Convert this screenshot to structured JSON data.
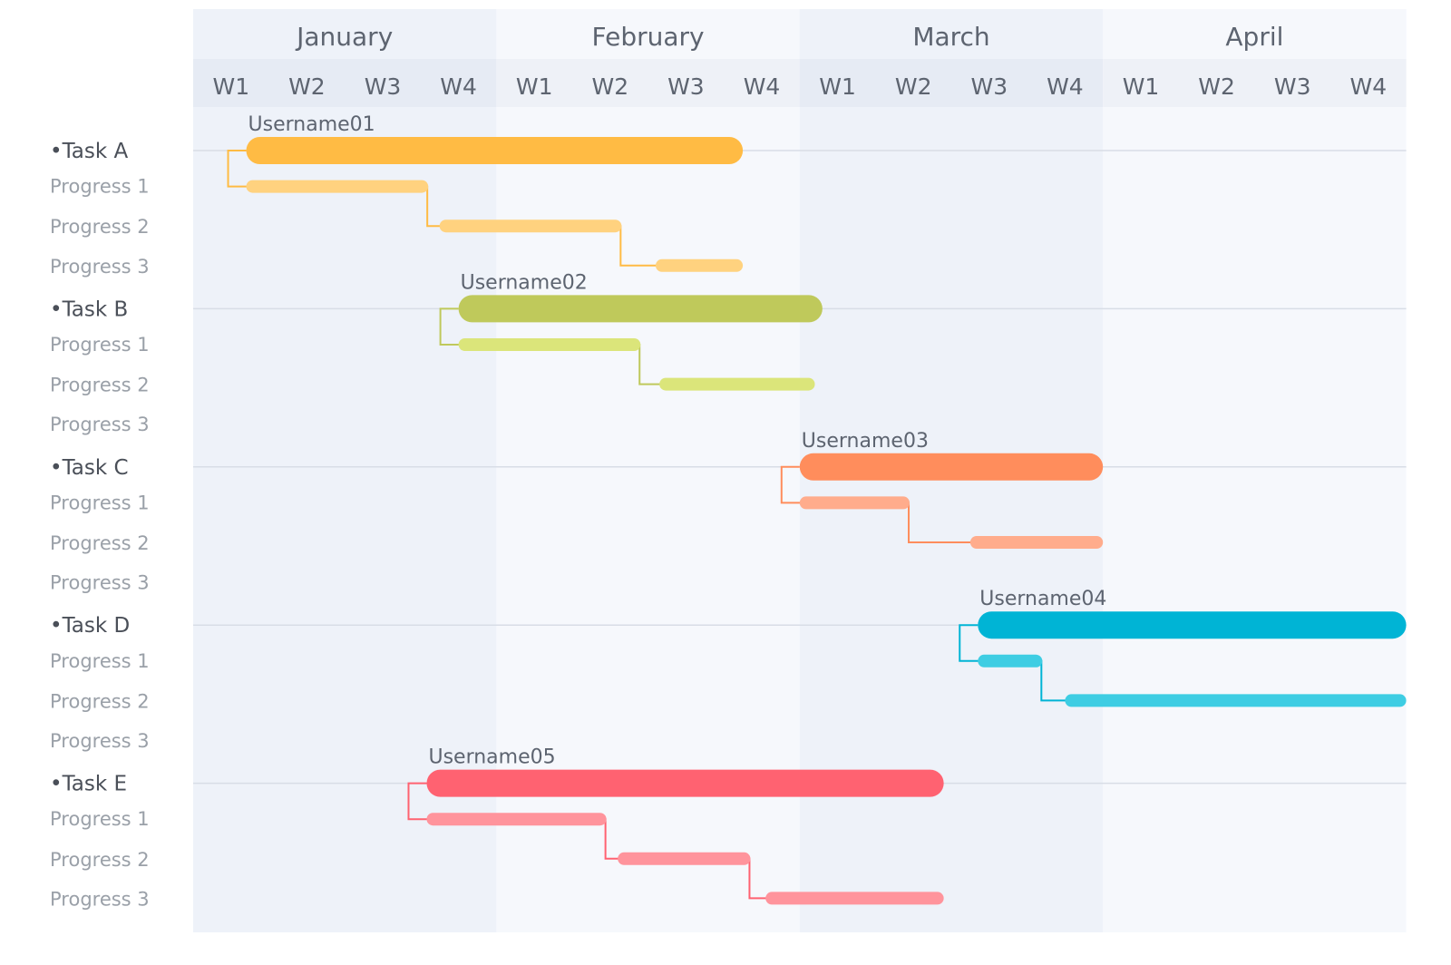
{
  "chart_data": {
    "type": "gantt",
    "months": [
      "January",
      "February",
      "March",
      "April"
    ],
    "week_labels": [
      "W1",
      "W2",
      "W3",
      "W4"
    ],
    "tasks": [
      {
        "name": "•Task A",
        "user": "Username01",
        "color": "#ffbb44",
        "sub_color": "#ffd27f",
        "start": 0.7,
        "end": 7.25,
        "progress": [
          {
            "name": "Progress 1",
            "start": 0.7,
            "end": 3.1
          },
          {
            "name": "Progress 2",
            "start": 3.25,
            "end": 5.65
          },
          {
            "name": "Progress 3",
            "start": 6.1,
            "end": 7.25
          }
        ]
      },
      {
        "name": "•Task B",
        "user": "Username02",
        "color": "#bfc95b",
        "sub_color": "#dbe57a",
        "start": 3.5,
        "end": 8.3,
        "progress": [
          {
            "name": "Progress 1",
            "start": 3.5,
            "end": 5.9
          },
          {
            "name": "Progress 2",
            "start": 6.15,
            "end": 8.2
          },
          {
            "name": "Progress 3",
            "start": null,
            "end": null
          }
        ]
      },
      {
        "name": "•Task C",
        "user": "Username03",
        "color": "#ff8d5c",
        "sub_color": "#ffac8c",
        "start": 8.0,
        "end": 12.0,
        "progress": [
          {
            "name": "Progress 1",
            "start": 8.0,
            "end": 9.45
          },
          {
            "name": "Progress 2",
            "start": 10.25,
            "end": 12.0
          },
          {
            "name": "Progress 3",
            "start": null,
            "end": null
          }
        ]
      },
      {
        "name": "•Task D",
        "user": "Username04",
        "color": "#00b4d5",
        "sub_color": "#3ecde3",
        "start": 10.35,
        "end": 16.0,
        "progress": [
          {
            "name": "Progress 1",
            "start": 10.35,
            "end": 11.2
          },
          {
            "name": "Progress 2",
            "start": 11.5,
            "end": 16.0
          },
          {
            "name": "Progress 3",
            "start": null,
            "end": null
          }
        ]
      },
      {
        "name": "•Task E",
        "user": "Username05",
        "color": "#ff6271",
        "sub_color": "#ff949c",
        "start": 3.08,
        "end": 9.9,
        "progress": [
          {
            "name": "Progress 1",
            "start": 3.08,
            "end": 5.45
          },
          {
            "name": "Progress 2",
            "start": 5.6,
            "end": 7.35
          },
          {
            "name": "Progress 3",
            "start": 7.55,
            "end": 9.9
          }
        ]
      }
    ]
  }
}
